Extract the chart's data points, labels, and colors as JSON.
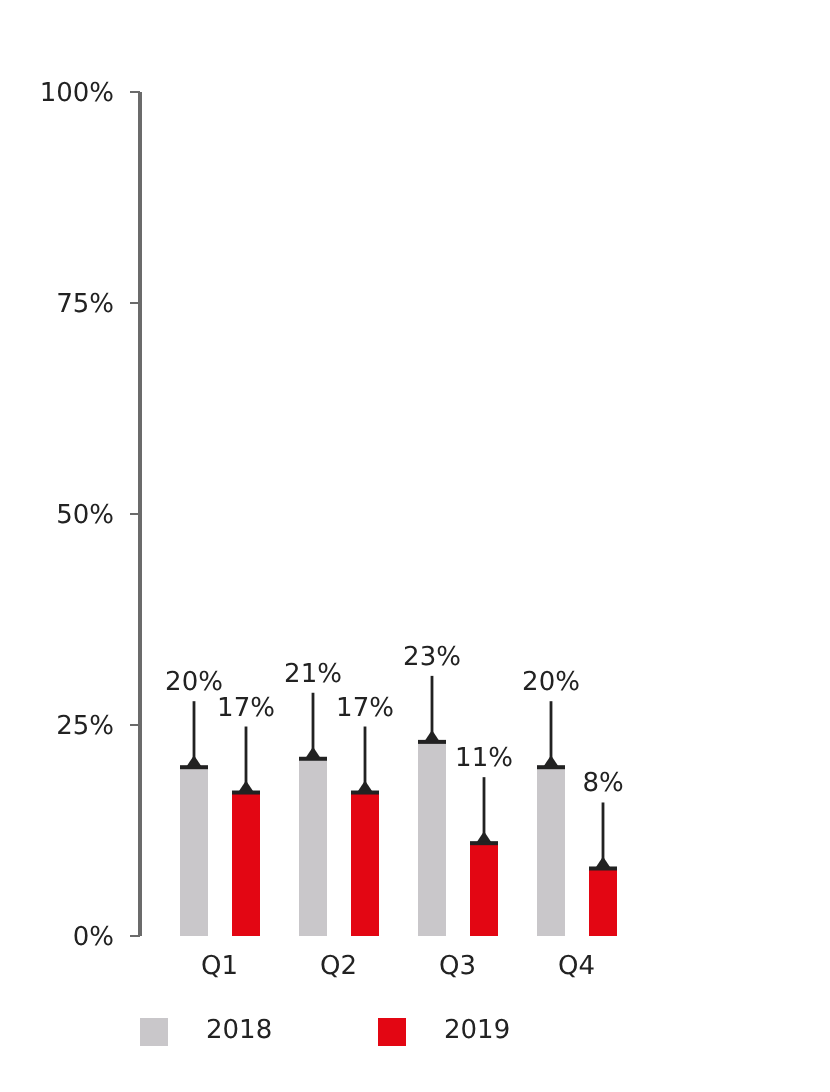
{
  "chart_data": {
    "type": "bar",
    "categories": [
      "Q1",
      "Q2",
      "Q3",
      "Q4"
    ],
    "series": [
      {
        "name": "2018",
        "color": "#c9c7ca",
        "values": [
          20,
          21,
          23,
          20
        ],
        "value_labels": [
          "20%",
          "21%",
          "23%",
          "20%"
        ]
      },
      {
        "name": "2019",
        "color": "#e30613",
        "values": [
          17,
          17,
          11,
          8
        ],
        "value_labels": [
          "17%",
          "17%",
          "11%",
          "8%"
        ]
      }
    ],
    "ylim": [
      0,
      100
    ],
    "yticks": [
      {
        "value": 0,
        "label": "0%"
      },
      {
        "value": 25,
        "label": "25%"
      },
      {
        "value": 50,
        "label": "50%"
      },
      {
        "value": 75,
        "label": "75%"
      },
      {
        "value": 100,
        "label": "100%"
      }
    ],
    "legend": "bottom"
  }
}
